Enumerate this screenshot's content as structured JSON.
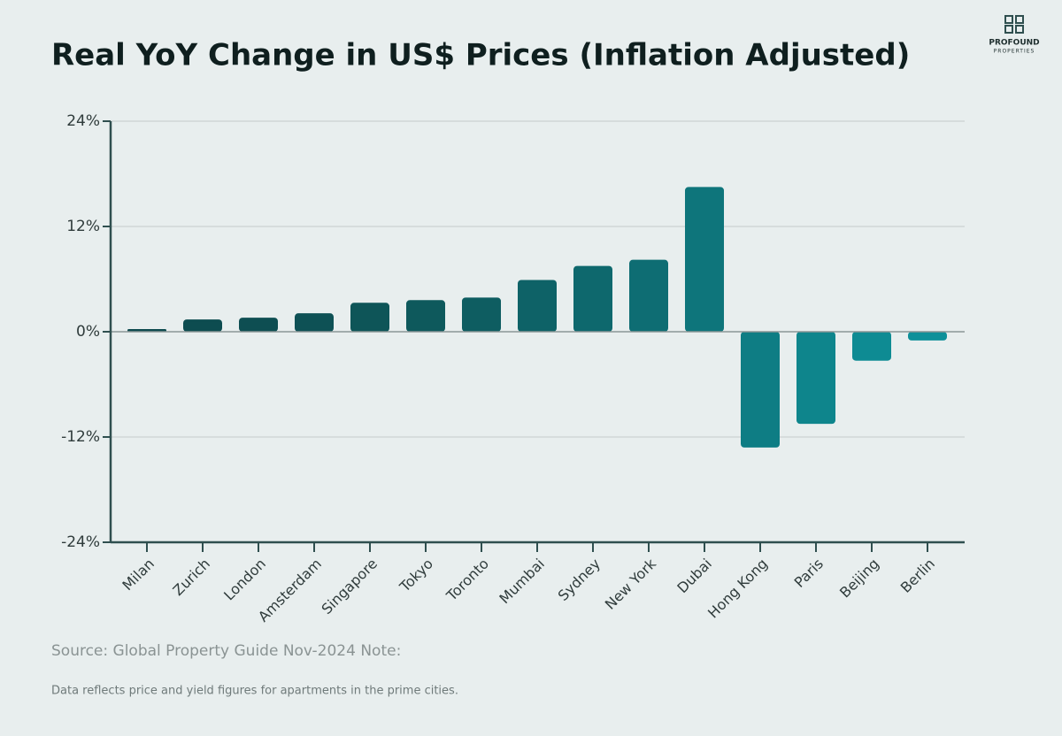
{
  "chart_data": {
    "type": "bar",
    "title": "Real YoY Change in US$ Prices (Inflation Adjusted)",
    "categories": [
      "Milan",
      "Zurich",
      "London",
      "Amsterdam",
      "Singapore",
      "Tokyo",
      "Toronto",
      "Mumbai",
      "Sydney",
      "New York",
      "Dubai",
      "Hong Kong",
      "Paris",
      "Beijing",
      "Berlin"
    ],
    "values": [
      0.3,
      1.4,
      1.6,
      2.1,
      3.3,
      3.6,
      3.9,
      5.9,
      7.5,
      8.2,
      16.5,
      -13.2,
      -10.5,
      -3.3,
      -1.0
    ],
    "colors": [
      "#0d4a4e",
      "#0d4c50",
      "#0e4e52",
      "#0e5155",
      "#0e5558",
      "#0e595c",
      "#0e5d61",
      "#0e6267",
      "#0e686d",
      "#0e6d73",
      "#0e757b",
      "#0e7d84",
      "#0e858c",
      "#0e8b93",
      "#0e9099"
    ],
    "ylim": [
      -24,
      24
    ],
    "yticks": [
      {
        "value": -24,
        "label": "-24%"
      },
      {
        "value": -12,
        "label": "-12%"
      },
      {
        "value": 0,
        "label": "0%"
      },
      {
        "value": 12,
        "label": "12%"
      },
      {
        "value": 24,
        "label": "24%"
      }
    ],
    "grid": true,
    "source": "Source: Global Property Guide Nov-2024 Note:",
    "note": "Data reflects price and yield figures for apartments in the prime cities."
  },
  "logo": {
    "line1": "PROFOUND",
    "line2": "PROPERTIES"
  }
}
